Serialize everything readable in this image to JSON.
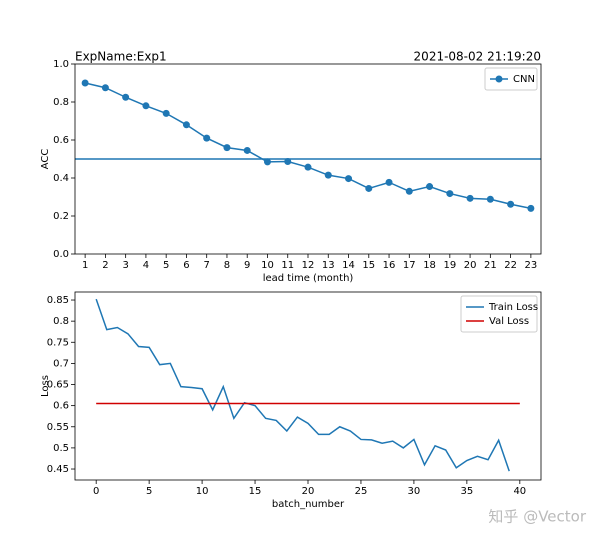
{
  "chart_data": [
    {
      "type": "line",
      "title": "ExpName:Exp1",
      "timestamp": "2021-08-02 21:19:20",
      "xlabel": "lead time (month)",
      "ylabel": "ACC",
      "xlim": [
        0.5,
        23.5
      ],
      "ylim": [
        0,
        1
      ],
      "xticks": [
        1,
        2,
        3,
        4,
        5,
        6,
        7,
        8,
        9,
        10,
        11,
        12,
        13,
        14,
        15,
        16,
        17,
        18,
        19,
        20,
        21,
        22,
        23
      ],
      "yticks": [
        {
          "value": 0,
          "label": "0.0"
        },
        0.2,
        0.4,
        0.6,
        0.8,
        {
          "value": 1,
          "label": "1.0"
        }
      ],
      "reference_line": 0.5,
      "reference_color": "#1f77b4",
      "legend": "upper right",
      "series": [
        {
          "name": "CNN",
          "color": "#1f77b4",
          "marker": true,
          "x": [
            1,
            2,
            3,
            4,
            5,
            6,
            7,
            8,
            9,
            10,
            11,
            12,
            13,
            14,
            15,
            16,
            17,
            18,
            19,
            20,
            21,
            22,
            23
          ],
          "values": [
            0.9,
            0.875,
            0.825,
            0.78,
            0.74,
            0.68,
            0.61,
            0.56,
            0.545,
            0.485,
            0.487,
            0.457,
            0.415,
            0.397,
            0.345,
            0.377,
            0.33,
            0.355,
            0.318,
            0.293,
            0.288,
            0.262,
            0.24
          ]
        }
      ]
    },
    {
      "type": "line",
      "xlabel": "batch_number",
      "ylabel": "Loss",
      "xlim": [
        -2,
        42
      ],
      "ylim": [
        0.424,
        0.869
      ],
      "xticks": [
        0,
        5,
        10,
        15,
        20,
        25,
        30,
        35,
        40
      ],
      "yticks": [
        0.45,
        0.5,
        0.55,
        0.6,
        0.65,
        0.7,
        0.75,
        0.8,
        0.85
      ],
      "legend": "upper right",
      "series": [
        {
          "name": "Train Loss",
          "color": "#1f77b4",
          "marker": false,
          "x": [
            0,
            1,
            2,
            3,
            4,
            5,
            6,
            7,
            8,
            9,
            10,
            11,
            12,
            13,
            14,
            15,
            16,
            17,
            18,
            19,
            20,
            21,
            22,
            23,
            24,
            25,
            26,
            27,
            28,
            29,
            30,
            31,
            32,
            33,
            34,
            35,
            36,
            37,
            38,
            39
          ],
          "values": [
            0.852,
            0.78,
            0.785,
            0.77,
            0.74,
            0.738,
            0.697,
            0.7,
            0.645,
            0.643,
            0.64,
            0.59,
            0.645,
            0.57,
            0.607,
            0.6,
            0.57,
            0.565,
            0.54,
            0.573,
            0.558,
            0.532,
            0.532,
            0.55,
            0.54,
            0.52,
            0.519,
            0.511,
            0.516,
            0.5,
            0.52,
            0.46,
            0.505,
            0.495,
            0.453,
            0.47,
            0.48,
            0.472,
            0.518,
            0.445
          ]
        },
        {
          "name": "Val Loss",
          "color": "#d00000",
          "marker": false,
          "x": [
            0,
            40
          ],
          "values": [
            0.605,
            0.605
          ]
        }
      ]
    }
  ],
  "watermark": "知乎 @Vector"
}
